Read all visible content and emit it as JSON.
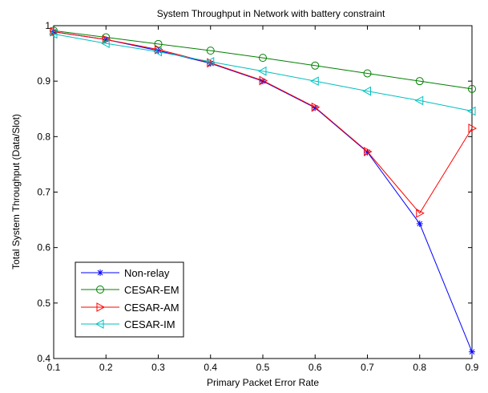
{
  "chart_data": {
    "type": "line",
    "title": "System Throughput in Network with battery constraint",
    "xlabel": "Primary Packet Error Rate",
    "ylabel": "Total System Throughput (Data/Slot)",
    "xlim": [
      0.1,
      0.9
    ],
    "ylim": [
      0.4,
      1.0
    ],
    "xticks": [
      "0.1",
      "0.2",
      "0.3",
      "0.4",
      "0.5",
      "0.6",
      "0.7",
      "0.8",
      "0.9"
    ],
    "yticks": [
      "0.4",
      "0.5",
      "0.6",
      "0.7",
      "0.8",
      "0.9",
      "1"
    ],
    "grid": false,
    "legend_position": "bottom-left",
    "x": [
      0.1,
      0.2,
      0.3,
      0.4,
      0.5,
      0.6,
      0.7,
      0.8,
      0.9
    ],
    "series": [
      {
        "name": "Non-relay",
        "color": "#0000ff",
        "marker": "asterisk",
        "values": [
          0.989,
          0.975,
          0.955,
          0.932,
          0.9,
          0.852,
          0.772,
          0.643,
          0.412
        ]
      },
      {
        "name": "CESAR-EM",
        "color": "#008000",
        "marker": "circle",
        "values": [
          0.991,
          0.979,
          0.967,
          0.955,
          0.942,
          0.928,
          0.914,
          0.9,
          0.886
        ]
      },
      {
        "name": "CESAR-AM",
        "color": "#ff0000",
        "marker": "triangle-right",
        "values": [
          0.989,
          0.975,
          0.957,
          0.933,
          0.901,
          0.853,
          0.773,
          0.662,
          0.815
        ]
      },
      {
        "name": "CESAR-IM",
        "color": "#00bfbf",
        "marker": "triangle-left",
        "values": [
          0.985,
          0.968,
          0.953,
          0.935,
          0.918,
          0.9,
          0.882,
          0.865,
          0.846
        ]
      }
    ]
  }
}
